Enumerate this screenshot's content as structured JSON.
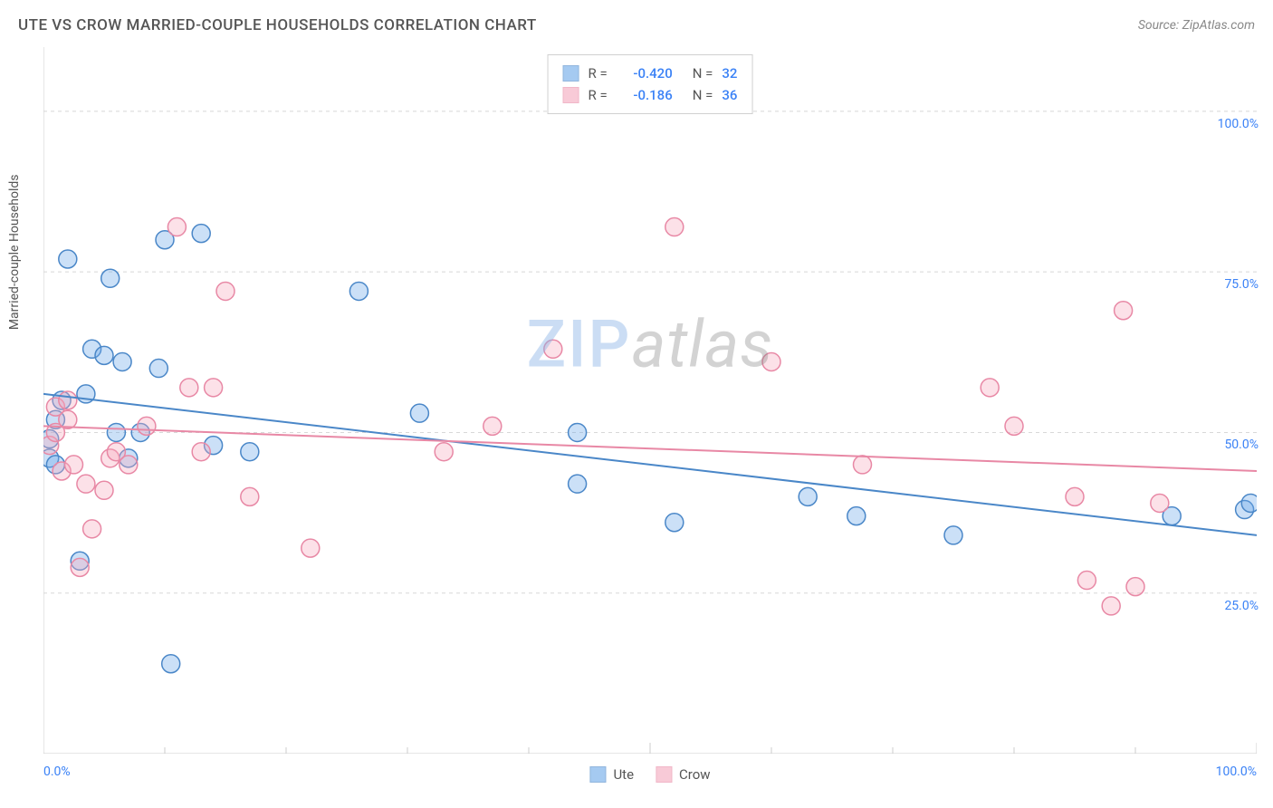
{
  "title": "UTE VS CROW MARRIED-COUPLE HOUSEHOLDS CORRELATION CHART",
  "source": "Source: ZipAtlas.com",
  "y_axis_label": "Married-couple Households",
  "watermark": {
    "prefix": "ZIP",
    "suffix": "atlas"
  },
  "chart": {
    "type": "scatter",
    "background_color": "#ffffff",
    "border_color": "#cccccc",
    "grid_color": "#d8d8d8",
    "grid_dash": "4,4",
    "xlim": [
      0,
      100
    ],
    "ylim": [
      0,
      110
    ],
    "x_ticks_major": [
      0,
      50,
      100
    ],
    "x_ticks_minor": [
      10,
      20,
      30,
      40,
      60,
      70,
      80,
      90
    ],
    "y_gridlines": [
      25,
      50,
      75,
      100
    ],
    "x_tick_labels": {
      "0": "0.0%",
      "100": "100.0%"
    },
    "y_tick_labels": {
      "25": "25.0%",
      "50": "50.0%",
      "75": "75.0%",
      "100": "100.0%"
    },
    "tick_label_color": "#3b82f6",
    "tick_label_fontsize": 14,
    "axis_label_color": "#555555",
    "axis_label_fontsize": 14,
    "marker_radius": 10,
    "marker_stroke_width": 1.5,
    "marker_fill_opacity": 0.35,
    "trendline_width": 2,
    "series": [
      {
        "name": "Ute",
        "color": "#6aa7e8",
        "stroke": "#4a87c8",
        "r_value": "-0.420",
        "n_value": "32",
        "trendline": {
          "x1": 0,
          "y1": 56,
          "x2": 100,
          "y2": 34
        },
        "points": [
          [
            0.5,
            49
          ],
          [
            0.5,
            46
          ],
          [
            1,
            52
          ],
          [
            1,
            45
          ],
          [
            1.5,
            55
          ],
          [
            2,
            77
          ],
          [
            3,
            30
          ],
          [
            3.5,
            56
          ],
          [
            4,
            63
          ],
          [
            5,
            62
          ],
          [
            5.5,
            74
          ],
          [
            6,
            50
          ],
          [
            6.5,
            61
          ],
          [
            7,
            46
          ],
          [
            8,
            50
          ],
          [
            9.5,
            60
          ],
          [
            10,
            80
          ],
          [
            10.5,
            14
          ],
          [
            13,
            81
          ],
          [
            14,
            48
          ],
          [
            17,
            47
          ],
          [
            26,
            72
          ],
          [
            31,
            53
          ],
          [
            44,
            50
          ],
          [
            44,
            42
          ],
          [
            52,
            36
          ],
          [
            63,
            40
          ],
          [
            67,
            37
          ],
          [
            75,
            34
          ],
          [
            93,
            37
          ],
          [
            99,
            38
          ],
          [
            99.5,
            39
          ]
        ]
      },
      {
        "name": "Crow",
        "color": "#f5a8bd",
        "stroke": "#e888a5",
        "r_value": "-0.186",
        "n_value": "36",
        "trendline": {
          "x1": 0,
          "y1": 51,
          "x2": 100,
          "y2": 44
        },
        "points": [
          [
            0.5,
            48
          ],
          [
            1,
            54
          ],
          [
            1,
            50
          ],
          [
            1.5,
            44
          ],
          [
            2,
            55
          ],
          [
            2,
            52
          ],
          [
            2.5,
            45
          ],
          [
            3,
            29
          ],
          [
            3.5,
            42
          ],
          [
            4,
            35
          ],
          [
            5,
            41
          ],
          [
            5.5,
            46
          ],
          [
            6,
            47
          ],
          [
            7,
            45
          ],
          [
            8.5,
            51
          ],
          [
            11,
            82
          ],
          [
            12,
            57
          ],
          [
            13,
            47
          ],
          [
            14,
            57
          ],
          [
            15,
            72
          ],
          [
            17,
            40
          ],
          [
            22,
            32
          ],
          [
            33,
            47
          ],
          [
            37,
            51
          ],
          [
            42,
            63
          ],
          [
            52,
            82
          ],
          [
            60,
            61
          ],
          [
            67.5,
            45
          ],
          [
            78,
            57
          ],
          [
            80,
            51
          ],
          [
            85,
            40
          ],
          [
            86,
            27
          ],
          [
            88,
            23
          ],
          [
            89,
            69
          ],
          [
            90,
            26
          ],
          [
            92,
            39
          ]
        ]
      }
    ]
  },
  "legend_top": {
    "r_label": "R =",
    "n_label": "N ="
  },
  "legend_bottom": [
    {
      "label": "Ute",
      "series_idx": 0
    },
    {
      "label": "Crow",
      "series_idx": 1
    }
  ]
}
